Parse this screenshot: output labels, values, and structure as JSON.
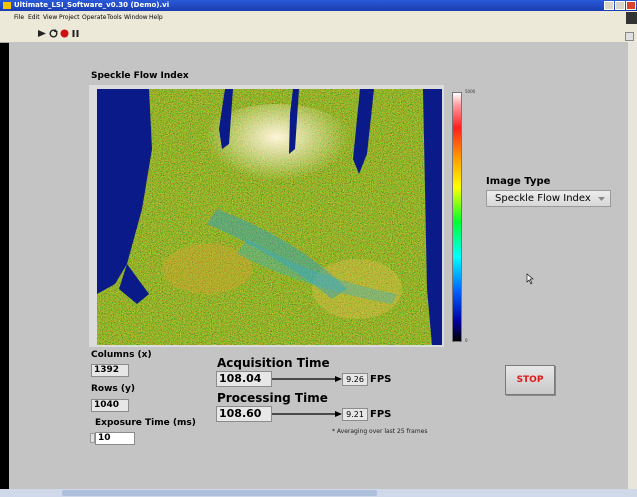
{
  "window": {
    "title": "Ultimate_LSI_Software_v0.30 (Demo).vi"
  },
  "menu": {
    "items": [
      "File",
      "Edit",
      "View",
      "Project",
      "Operate",
      "Tools",
      "Window",
      "Help"
    ]
  },
  "toolbar": {
    "icons": [
      "run-arrow-icon",
      "run-continuously-icon",
      "abort-icon",
      "pause-icon"
    ]
  },
  "panel": {
    "graph_title": "Speckle Flow Index",
    "colorbar_max": "5000",
    "colorbar_min": "0",
    "columns_label": "Columns (x)",
    "columns_value": "1392",
    "rows_label": "Rows (y)",
    "rows_value": "1040",
    "exposure_label": "Exposure Time (ms)",
    "exposure_value": "10",
    "acq_label": "Acquisition Time",
    "acq_value": "108.04",
    "acq_fps": "9.26",
    "fps_unit": "FPS",
    "proc_label": "Processing Time",
    "proc_value": "108.60",
    "proc_fps": "9.21",
    "footnote": "* Averaging over last 25 frames",
    "image_type_label": "Image Type",
    "image_type_value": "Speckle Flow Index",
    "stop_label": "STOP"
  },
  "colors": {
    "panel_bg": "#c4c4c4",
    "stop_text": "#e01818",
    "titlebar": "#1a3cb0"
  }
}
